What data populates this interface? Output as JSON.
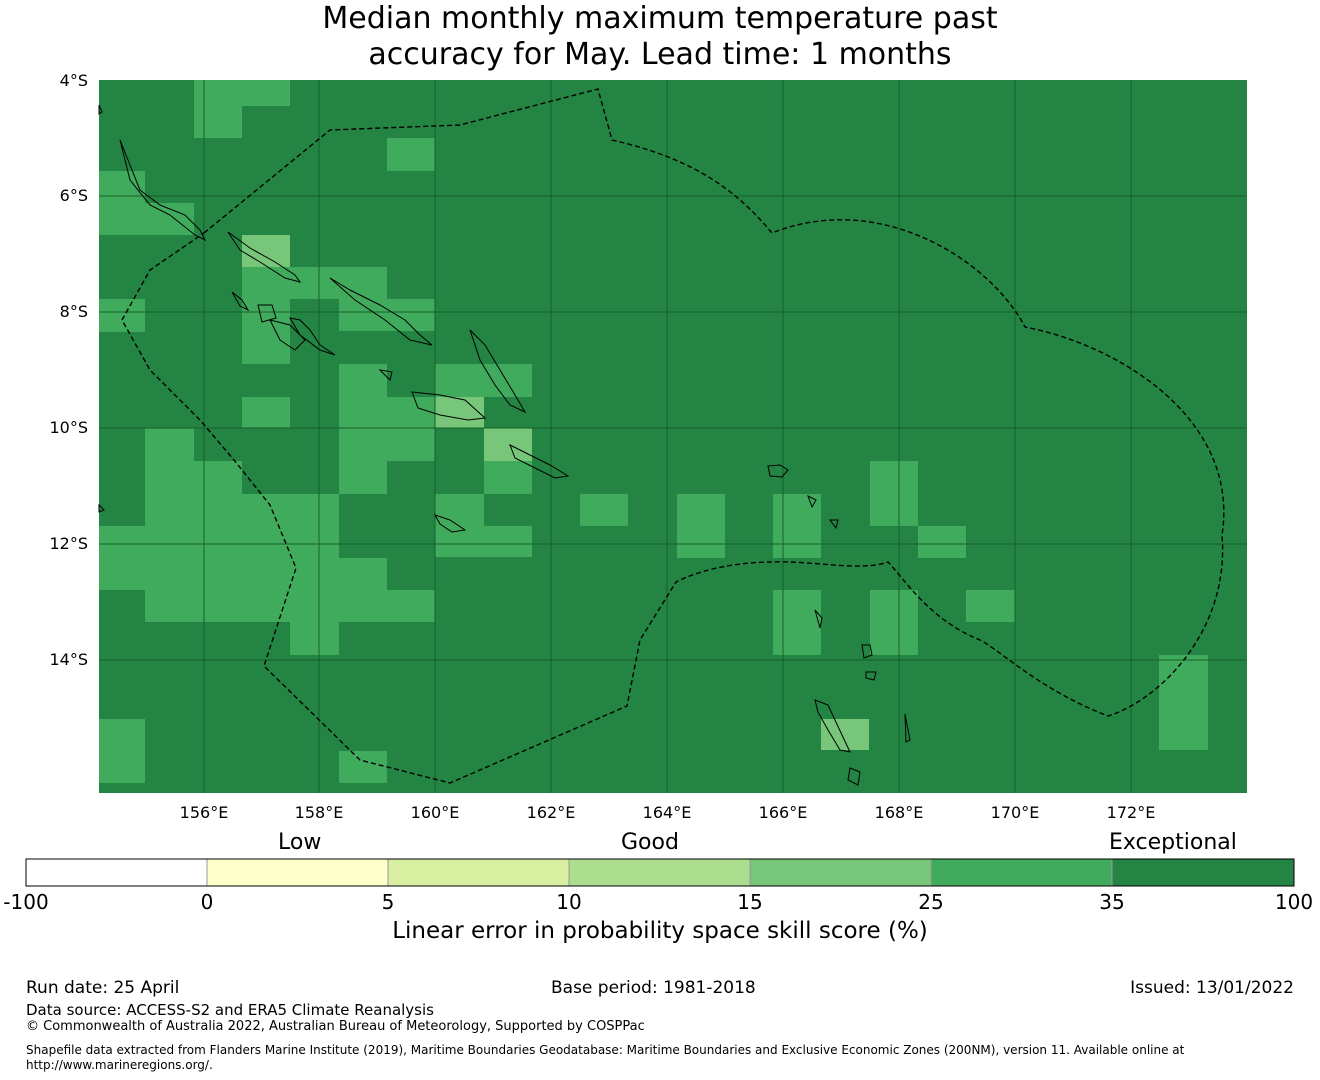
{
  "title": {
    "line1": "Median monthly maximum temperature past",
    "line2": "accuracy for May. Lead time: 1 months"
  },
  "map": {
    "lat_labels": [
      "4°S",
      "6°S",
      "8°S",
      "10°S",
      "12°S",
      "14°S"
    ],
    "lon_labels": [
      "156°E",
      "158°E",
      "160°E",
      "162°E",
      "164°E",
      "166°E",
      "168°E",
      "170°E",
      "172°E"
    ],
    "background_color": "#238443"
  },
  "colorbar": {
    "categories": [
      "Low",
      "Good",
      "Exceptional"
    ],
    "ticks": [
      "-100",
      "0",
      "5",
      "10",
      "15",
      "25",
      "35",
      "100"
    ],
    "colors": [
      "#ffffff",
      "#ffffcc",
      "#d9f0a3",
      "#addd8e",
      "#78c679",
      "#41ab5d",
      "#238443"
    ],
    "label": "Linear error in probability space skill score (%)"
  },
  "footer": {
    "run_date": "Run date: 25 April",
    "base_period": "Base period: 1981-2018",
    "issued": "Issued: 13/01/2022",
    "data_source": "Data source: ACCESS-S2 and ERA5 Climate Reanalysis",
    "copyright": "© Commonwealth of Australia 2022, Australian Bureau of Meteorology, Supported by COSPPac",
    "shapefile_line1": "Shapefile data extracted from Flanders Marine Institute (2019), Maritime Boundaries Geodatabase: Maritime Boundaries and Exclusive Economic Zones (200NM), version 11. Available online at",
    "shapefile_line2": "http://www.marineregions.org/."
  }
}
